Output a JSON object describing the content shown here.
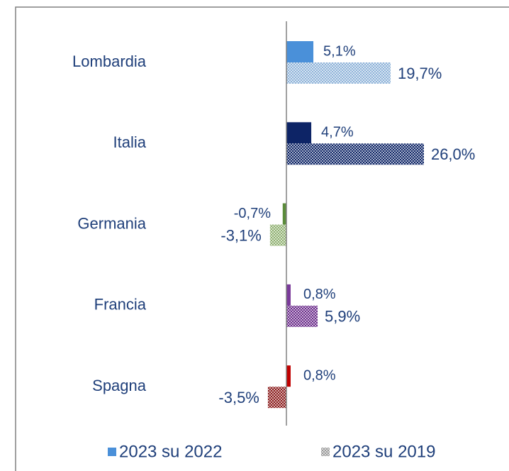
{
  "chart_data": {
    "type": "hbar",
    "categories": [
      "Lombardia",
      "Italia",
      "Germania",
      "Francia",
      "Spagna"
    ],
    "series": [
      {
        "name": "2023 su 2022",
        "color": "#4a90d9",
        "colors": [
          "#4a90d9",
          "#0d2466",
          "#5b8c3a",
          "#7a3a9a",
          "#c00000"
        ],
        "values": [
          5.1,
          4.7,
          -0.7,
          0.8,
          0.8
        ],
        "value_labels": [
          "5,1%",
          "4,7%",
          "-0,7%",
          "0,8%",
          "0,8%"
        ]
      },
      {
        "name": "2023 su 2019",
        "color": "#9a9a9a",
        "colors": [
          "#8fb3d9",
          "#0d2466",
          "#8fb070",
          "#6a2a8a",
          "#8a1a1a"
        ],
        "values": [
          19.7,
          26.0,
          -3.1,
          5.9,
          -3.5
        ],
        "value_labels": [
          "19,7%",
          "26,0%",
          "-3,1%",
          "5,9%",
          "-3,5%"
        ]
      }
    ]
  }
}
